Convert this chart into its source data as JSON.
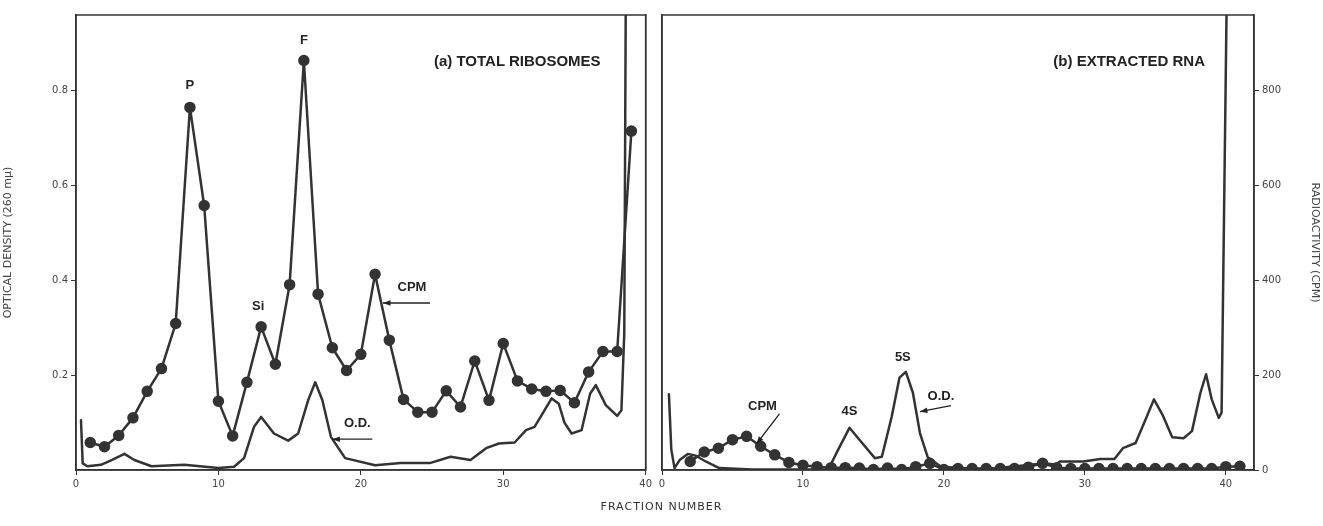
{
  "chart_data": [
    {
      "type": "line",
      "title": "(a) TOTAL RIBOSOMES",
      "xlabel": "FRACTION NUMBER",
      "ylabel": "OPTICAL DENSITY (260 mμ)",
      "xlim": [
        0,
        40
      ],
      "xticks": [
        0,
        10,
        20,
        30,
        40
      ],
      "ylim": [
        0,
        0.96
      ],
      "yticks": [
        0.2,
        0.4,
        0.6,
        0.8
      ],
      "y2lim": [
        0,
        960
      ],
      "grid": false,
      "legend": false,
      "series": [
        {
          "color": "#333333",
          "axis": "y2",
          "marker": "circle",
          "x": [
            1,
            2,
            3,
            4,
            5,
            6,
            7,
            8,
            9,
            10,
            11,
            12,
            13,
            14,
            15,
            16,
            17,
            18,
            19,
            20,
            21,
            22,
            23,
            24,
            25,
            26,
            27,
            28,
            29,
            30,
            31,
            32,
            33,
            34,
            35,
            36,
            37,
            38,
            39
          ],
          "values": [
            58,
            49,
            73,
            110,
            166,
            214,
            309,
            765,
            558,
            145,
            72,
            185,
            302,
            223,
            391,
            864,
            371,
            258,
            210,
            244,
            413,
            274,
            149,
            122,
            122,
            167,
            133,
            230,
            147,
            267,
            188,
            171,
            166,
            168,
            142,
            207,
            250,
            250,
            715
          ]
        },
        {
          "color": "#333333",
          "marker": "none",
          "x": [
            0.35,
            0.47,
            0.8,
            1.75,
            2.5,
            3.4,
            4.1,
            5.3,
            7.6,
            10.0,
            11.1,
            11.8,
            12.5,
            13.0,
            13.9,
            14.9,
            15.6,
            16.3,
            16.8,
            17.3,
            17.9,
            18.9,
            21.0,
            22.8,
            24.9,
            26.3,
            27.7,
            28.8,
            29.7,
            30.8,
            31.6,
            32.2,
            33.4,
            33.9,
            34.3,
            34.8,
            35.5,
            36.1,
            36.5,
            37.2,
            38.0,
            38.3,
            38.5,
            38.6
          ],
          "values": [
            0.105,
            0.014,
            0.008,
            0.011,
            0.021,
            0.034,
            0.021,
            0.008,
            0.011,
            0.004,
            0.007,
            0.025,
            0.091,
            0.112,
            0.077,
            0.062,
            0.077,
            0.147,
            0.185,
            0.147,
            0.07,
            0.025,
            0.01,
            0.015,
            0.015,
            0.028,
            0.021,
            0.046,
            0.056,
            0.058,
            0.084,
            0.091,
            0.151,
            0.14,
            0.1,
            0.077,
            0.084,
            0.161,
            0.179,
            0.137,
            0.114,
            0.126,
            0.288,
            0.96
          ]
        }
      ],
      "annotations": [
        {
          "text": "P",
          "x": 8,
          "y": 0.765
        },
        {
          "text": "Si",
          "x": 13,
          "y": 0.302
        },
        {
          "text": "F",
          "x": 16,
          "y": 0.864
        },
        "CPM",
        {
          "text": "O.D.",
          "x": 18,
          "y": 0.065
        }
      ]
    },
    {
      "type": "line",
      "title": "(b) EXTRACTED RNA",
      "y2label": "RADIOACTIVITY (CPM)",
      "xlim": [
        0,
        42
      ],
      "xticks": [
        0,
        10,
        20,
        30,
        40
      ],
      "ylim": [
        0,
        0.96
      ],
      "y2lim": [
        0,
        960
      ],
      "y2ticks": [
        0,
        200,
        400,
        600,
        800
      ],
      "tick_labels": "xy2",
      "grid": false,
      "legend": false,
      "series": [
        {
          "color": "#333333",
          "axis": "y2",
          "marker": "circle",
          "x": [
            2,
            3,
            4,
            5,
            6,
            7,
            8,
            9,
            10,
            11,
            12,
            13,
            14,
            15,
            16,
            17,
            18,
            19,
            20,
            21,
            22,
            23,
            24,
            25,
            26,
            27,
            28,
            29,
            30,
            31,
            32,
            33,
            34,
            35,
            36,
            37,
            38,
            39,
            40,
            41
          ],
          "values": [
            18,
            38,
            46,
            64,
            71,
            50,
            32,
            16,
            10,
            7,
            5,
            5,
            4,
            1,
            4,
            1,
            7,
            14,
            1,
            3,
            3,
            3,
            3,
            3,
            6,
            14,
            5,
            3,
            3,
            3,
            3,
            3,
            3,
            3,
            3,
            3,
            3,
            3,
            7,
            8
          ]
        },
        {
          "color": "#333333",
          "marker": "none",
          "x": [
            0.49,
            0.66,
            0.89,
            1.25,
            1.83,
            2.4,
            3.1,
            4.06,
            6.4,
            8.75,
            11.8,
            12.5,
            13.3,
            14.2,
            15.1,
            15.6,
            16.3,
            16.85,
            17.3,
            17.8,
            18.3,
            18.85,
            19.8,
            22.8,
            26.8,
            27.1,
            28.0,
            28.2,
            29.9,
            31.1,
            32.1,
            32.7,
            33.6,
            34.3,
            34.9,
            35.5,
            36.2,
            37.0,
            37.6,
            38.2,
            38.6,
            39.0,
            39.5,
            39.7,
            40.05
          ],
          "values": [
            0.16,
            0.043,
            0.004,
            0.021,
            0.034,
            0.03,
            0.018,
            0.004,
            0.001,
            0.001,
            0.001,
            0.043,
            0.089,
            0.057,
            0.025,
            0.028,
            0.113,
            0.195,
            0.207,
            0.163,
            0.078,
            0.027,
            0.007,
            0.001,
            0.013,
            0.014,
            0.011,
            0.018,
            0.018,
            0.023,
            0.023,
            0.046,
            0.057,
            0.106,
            0.149,
            0.117,
            0.069,
            0.067,
            0.082,
            0.163,
            0.202,
            0.149,
            0.11,
            0.121,
            0.96
          ]
        }
      ],
      "annotations": [
        {
          "text": "CPM",
          "x": 6.7,
          "y": 0.055
        },
        {
          "text": "4S",
          "x": 13.3,
          "y": 0.086
        },
        {
          "text": "5S",
          "x": 17.3,
          "y": 0.2
        },
        {
          "text": "O.D.",
          "x": 18.3,
          "y": 0.123
        }
      ]
    }
  ]
}
